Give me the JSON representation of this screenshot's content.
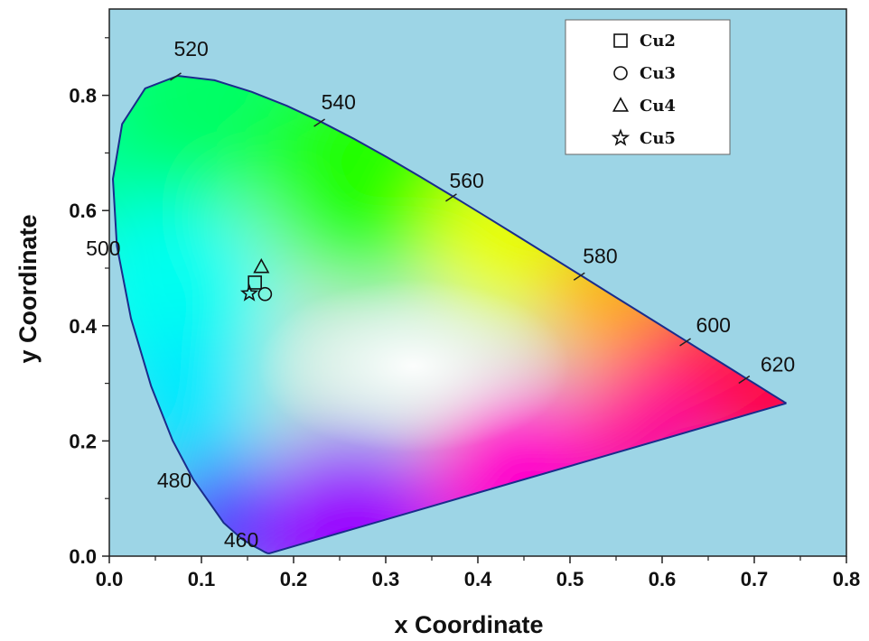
{
  "chart_data": {
    "type": "scatter",
    "title": "",
    "xlabel": "x Coordinate",
    "ylabel": "y Coordinate",
    "xlim": [
      0.0,
      0.8
    ],
    "ylim": [
      0.0,
      0.95
    ],
    "x_ticks": [
      "0.0",
      "0.1",
      "0.2",
      "0.3",
      "0.4",
      "0.5",
      "0.6",
      "0.7",
      "0.8"
    ],
    "y_ticks": [
      "0.0",
      "0.2",
      "0.4",
      "0.6",
      "0.8"
    ],
    "background_color": "#9dd5e6",
    "locus_color": "#1a2c8c",
    "wavelength_labels": [
      {
        "label": "460",
        "x": 0.144,
        "y": 0.03
      },
      {
        "label": "480",
        "x": 0.091,
        "y": 0.133
      },
      {
        "label": "500",
        "x": 0.008,
        "y": 0.538
      },
      {
        "label": "520",
        "x": 0.074,
        "y": 0.834
      },
      {
        "label": "540",
        "x": 0.23,
        "y": 0.754
      },
      {
        "label": "560",
        "x": 0.373,
        "y": 0.624
      },
      {
        "label": "580",
        "x": 0.512,
        "y": 0.487
      },
      {
        "label": "600",
        "x": 0.627,
        "y": 0.373
      },
      {
        "label": "620",
        "x": 0.691,
        "y": 0.308
      }
    ],
    "legend": {
      "position": "top-right",
      "entries": [
        {
          "name": "Cu2",
          "marker": "square"
        },
        {
          "name": "Cu3",
          "marker": "circle"
        },
        {
          "name": "Cu4",
          "marker": "triangle"
        },
        {
          "name": "Cu5",
          "marker": "star"
        }
      ]
    },
    "series": [
      {
        "name": "Cu2",
        "marker": "square",
        "x": 0.158,
        "y": 0.475
      },
      {
        "name": "Cu3",
        "marker": "circle",
        "x": 0.169,
        "y": 0.455
      },
      {
        "name": "Cu4",
        "marker": "triangle",
        "x": 0.165,
        "y": 0.502
      },
      {
        "name": "Cu5",
        "marker": "star",
        "x": 0.152,
        "y": 0.456
      }
    ]
  }
}
